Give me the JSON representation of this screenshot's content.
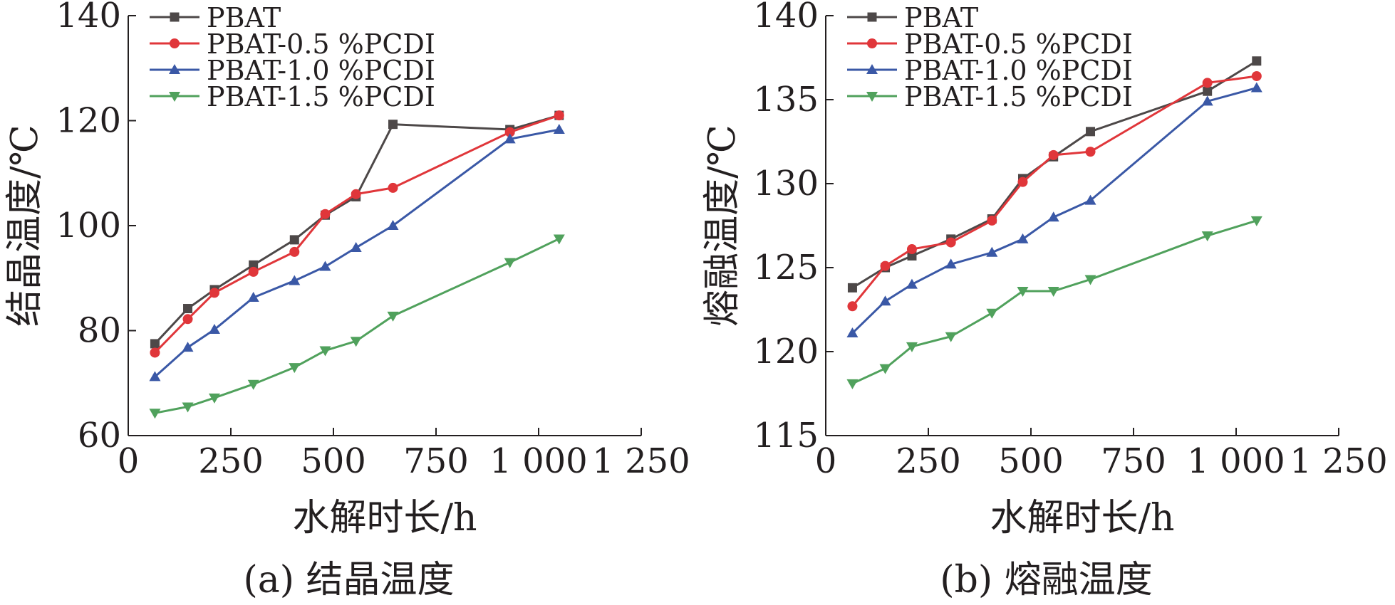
{
  "charts": {
    "a": {
      "caption": "(a) 结晶温度"
    },
    "b": {
      "caption": "(b) 熔融温度"
    }
  },
  "chart_data": [
    {
      "type": "line",
      "title": "(a) 结晶温度",
      "xlabel": "水解时长/h",
      "ylabel": "结晶温度/℃",
      "xlim": [
        0,
        1250
      ],
      "ylim": [
        60,
        140
      ],
      "xticks": [
        0,
        250,
        500,
        750,
        1000,
        1250
      ],
      "xtick_labels": [
        "0",
        "250",
        "500",
        "750",
        "1 000",
        "1 250"
      ],
      "yticks": [
        60,
        80,
        100,
        120,
        140
      ],
      "ytick_labels": [
        "60",
        "80",
        "100",
        "120",
        "140"
      ],
      "grid": false,
      "legend": "top-left",
      "series": [
        {
          "name": "PBAT",
          "color": "#4d4848",
          "marker": "square",
          "x": [
            65,
            145,
            210,
            305,
            405,
            480,
            555,
            645,
            930,
            1050
          ],
          "y": [
            77.5,
            84.2,
            87.8,
            92.5,
            97.3,
            102.0,
            105.5,
            119.3,
            118.3,
            121.0
          ]
        },
        {
          "name": "PBAT-0.5 %PCDI",
          "color": "#e0363a",
          "marker": "circle",
          "x": [
            65,
            145,
            210,
            305,
            405,
            480,
            555,
            645,
            930,
            1050
          ],
          "y": [
            75.8,
            82.2,
            87.2,
            91.2,
            95.0,
            102.2,
            106.0,
            107.2,
            117.8,
            121.0
          ]
        },
        {
          "name": "PBAT-1.0 %PCDI",
          "color": "#3a58a6",
          "marker": "triangle-up",
          "x": [
            65,
            145,
            210,
            305,
            405,
            480,
            555,
            645,
            930,
            1050
          ],
          "y": [
            71.2,
            76.8,
            80.2,
            86.3,
            89.5,
            92.2,
            95.8,
            100.0,
            116.5,
            118.3
          ]
        },
        {
          "name": "PBAT-1.5 %PCDI",
          "color": "#50a15c",
          "marker": "triangle-down",
          "x": [
            65,
            145,
            210,
            305,
            405,
            480,
            555,
            645,
            930,
            1050
          ],
          "y": [
            64.3,
            65.5,
            67.2,
            69.8,
            73.0,
            76.2,
            78.0,
            82.8,
            93.0,
            97.5
          ]
        }
      ]
    },
    {
      "type": "line",
      "title": "(b) 熔融温度",
      "xlabel": "水解时长/h",
      "ylabel": "熔融温度/℃",
      "xlim": [
        0,
        1250
      ],
      "ylim": [
        115,
        140
      ],
      "xticks": [
        0,
        250,
        500,
        750,
        1000,
        1250
      ],
      "xtick_labels": [
        "0",
        "250",
        "500",
        "750",
        "1 000",
        "1 250"
      ],
      "yticks": [
        115,
        120,
        125,
        130,
        135,
        140
      ],
      "ytick_labels": [
        "115",
        "120",
        "125",
        "130",
        "135",
        "140"
      ],
      "grid": false,
      "legend": "top-left",
      "series": [
        {
          "name": "PBAT",
          "color": "#4d4848",
          "marker": "square",
          "x": [
            65,
            145,
            210,
            305,
            405,
            480,
            555,
            645,
            930,
            1050
          ],
          "y": [
            123.8,
            125.0,
            125.7,
            126.7,
            127.9,
            130.3,
            131.6,
            133.1,
            135.5,
            137.3
          ]
        },
        {
          "name": "PBAT-0.5 %PCDI",
          "color": "#e0363a",
          "marker": "circle",
          "x": [
            65,
            145,
            210,
            305,
            405,
            480,
            555,
            645,
            930,
            1050
          ],
          "y": [
            122.7,
            125.1,
            126.1,
            126.5,
            127.8,
            130.1,
            131.7,
            131.9,
            136.0,
            136.4
          ]
        },
        {
          "name": "PBAT-1.0 %PCDI",
          "color": "#3a58a6",
          "marker": "triangle-up",
          "x": [
            65,
            145,
            210,
            305,
            405,
            480,
            555,
            645,
            930,
            1050
          ],
          "y": [
            121.1,
            123.0,
            124.0,
            125.2,
            125.9,
            126.7,
            128.0,
            129.0,
            134.9,
            135.7
          ]
        },
        {
          "name": "PBAT-1.5 %PCDI",
          "color": "#50a15c",
          "marker": "triangle-down",
          "x": [
            65,
            145,
            210,
            305,
            405,
            480,
            555,
            645,
            930,
            1050
          ],
          "y": [
            118.1,
            119.0,
            120.3,
            120.9,
            122.3,
            123.6,
            123.6,
            124.3,
            126.9,
            127.8
          ]
        }
      ]
    }
  ]
}
